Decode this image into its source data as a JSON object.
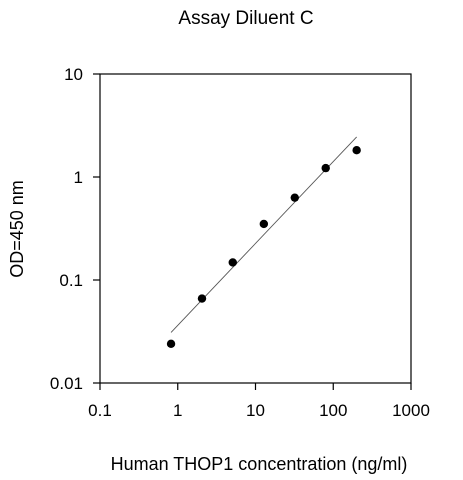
{
  "chart_data": {
    "type": "scatter",
    "title": "Assay Diluent C",
    "xlabel": "Human THOP1 concentration (ng/ml)",
    "ylabel": "OD=450 nm",
    "x_scale": "log",
    "y_scale": "log",
    "xlim": [
      0.1,
      1000
    ],
    "ylim": [
      0.01,
      10
    ],
    "x_ticks": [
      {
        "value": 0.1,
        "label": "0.1"
      },
      {
        "value": 1,
        "label": "1"
      },
      {
        "value": 10,
        "label": "10"
      },
      {
        "value": 100,
        "label": "100"
      },
      {
        "value": 1000,
        "label": "1000"
      }
    ],
    "y_ticks": [
      {
        "value": 0.01,
        "label": "0.01"
      },
      {
        "value": 0.1,
        "label": "0.1"
      },
      {
        "value": 1,
        "label": "1"
      },
      {
        "value": 10,
        "label": "10"
      }
    ],
    "grid": false,
    "legend": false,
    "series": [
      {
        "x": [
          0.82,
          2.05,
          5.1,
          12.8,
          32,
          80,
          200
        ],
        "y": [
          0.024,
          0.066,
          0.148,
          0.35,
          0.63,
          1.22,
          1.82
        ],
        "marker_color": "#000000"
      }
    ],
    "fit_line": {
      "x": [
        0.82,
        200
      ],
      "y": [
        0.031,
        2.45
      ],
      "color": "#555555"
    }
  }
}
